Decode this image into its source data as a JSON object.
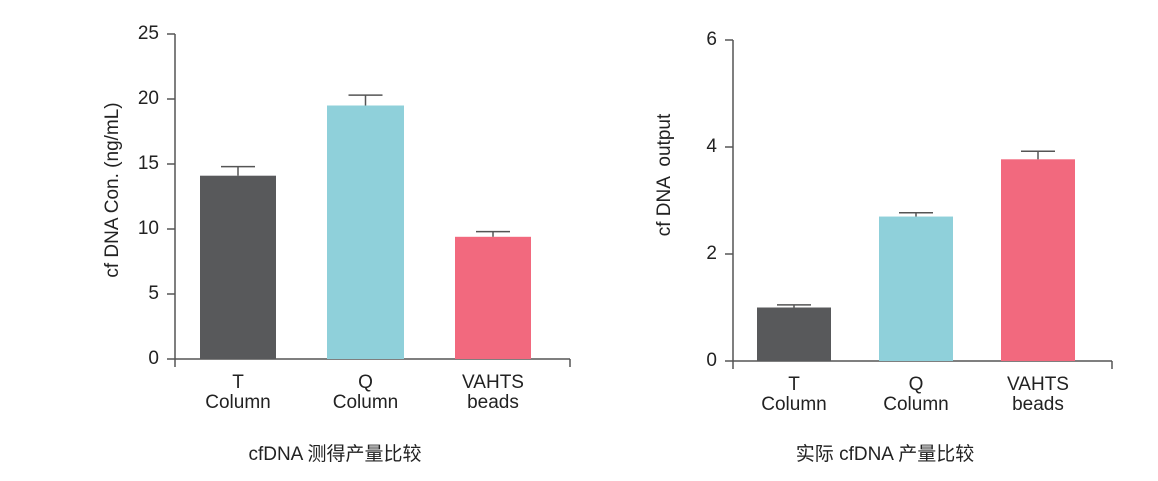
{
  "chart_data": [
    {
      "type": "bar",
      "title": "cfDNA 测得产量比较",
      "y_label": "cf DNA Con. (ng/mL)",
      "categories": [
        [
          "T",
          "Column"
        ],
        [
          "Q",
          "Column"
        ],
        [
          "VAHTS",
          "beads"
        ]
      ],
      "values": [
        14.1,
        19.5,
        9.4
      ],
      "errors": [
        0.7,
        0.8,
        0.4
      ],
      "colors": [
        "#58595b",
        "#8fd0da",
        "#f2697e"
      ],
      "ylim": [
        0,
        25
      ],
      "yticks": [
        0,
        5,
        10,
        15,
        20,
        25
      ]
    },
    {
      "type": "bar",
      "title": "实际 cfDNA 产量比较",
      "y_label": "cf DNA  output",
      "categories": [
        [
          "T",
          "Column"
        ],
        [
          "Q",
          "Column"
        ],
        [
          "VAHTS",
          "beads"
        ]
      ],
      "values": [
        1.0,
        2.7,
        3.77
      ],
      "errors": [
        0.05,
        0.07,
        0.15
      ],
      "colors": [
        "#58595b",
        "#8fd0da",
        "#f2697e"
      ],
      "ylim": [
        0,
        6
      ],
      "yticks": [
        0,
        2,
        4,
        6
      ]
    }
  ]
}
